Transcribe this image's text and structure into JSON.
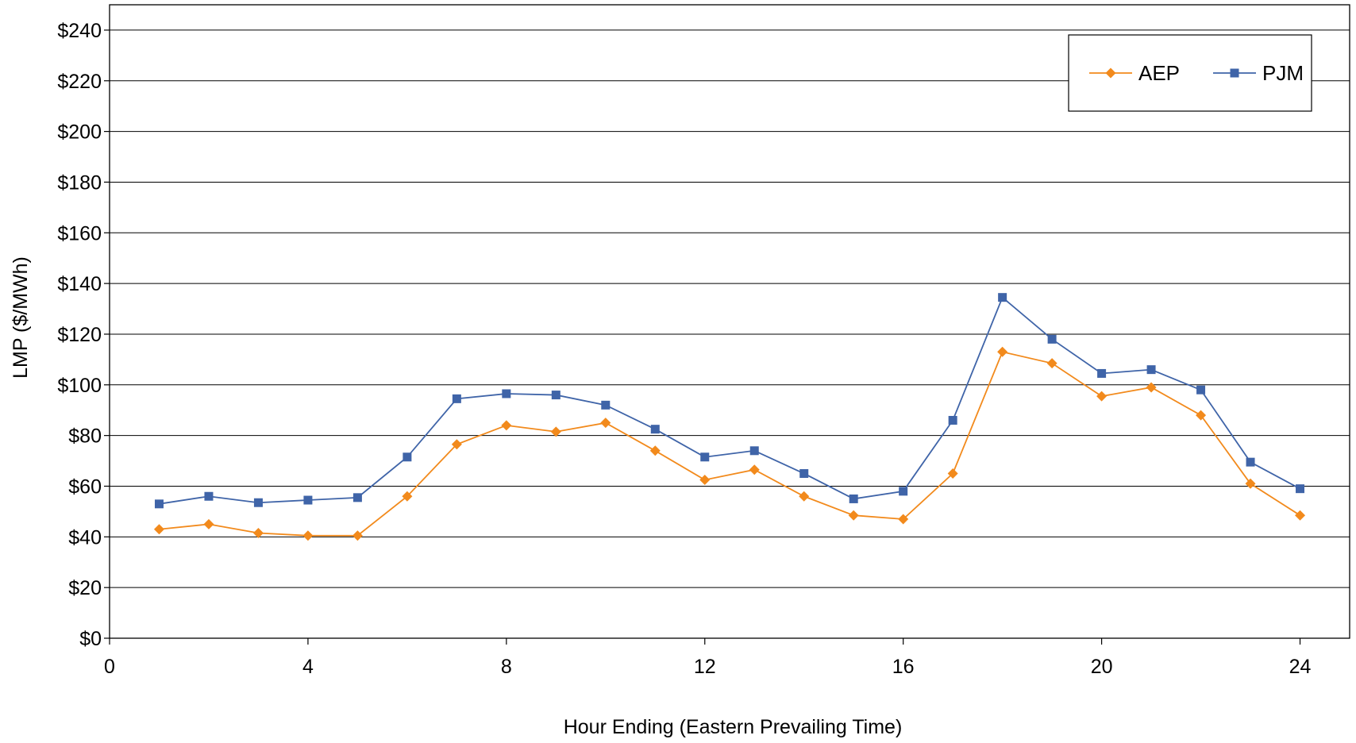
{
  "chart_data": {
    "type": "line",
    "title": "",
    "xlabel": "Hour Ending (Eastern Prevailing Time)",
    "ylabel": "LMP ($/MWh)",
    "xlim": [
      0,
      25
    ],
    "ylim": [
      0,
      250
    ],
    "xticks": [
      0,
      4,
      8,
      12,
      16,
      20,
      24
    ],
    "xtick_labels": [
      "0",
      "4",
      "8",
      "12",
      "16",
      "20",
      "24"
    ],
    "yticks": [
      0,
      20,
      40,
      60,
      80,
      100,
      120,
      140,
      160,
      180,
      200,
      220,
      240
    ],
    "ytick_labels": [
      "$0",
      "$20",
      "$40",
      "$60",
      "$80",
      "$100",
      "$120",
      "$140",
      "$160",
      "$180",
      "$200",
      "$220",
      "$240"
    ],
    "grid": "horizontal",
    "legend_position": "top-right",
    "x": [
      1,
      2,
      3,
      4,
      5,
      6,
      7,
      8,
      9,
      10,
      11,
      12,
      13,
      14,
      15,
      16,
      17,
      18,
      19,
      20,
      21,
      22,
      23,
      24
    ],
    "series": [
      {
        "name": "AEP",
        "color": "#F28A1C",
        "marker": "diamond",
        "values": [
          43,
          45,
          41.5,
          40.5,
          40.5,
          56,
          76.5,
          84,
          81.5,
          85,
          74,
          62.5,
          66.5,
          56,
          48.5,
          47,
          65,
          113,
          108.5,
          95.5,
          99,
          88,
          61,
          48.5
        ]
      },
      {
        "name": "PJM",
        "color": "#3F64A8",
        "marker": "square",
        "values": [
          53,
          56,
          53.5,
          54.5,
          55.5,
          71.5,
          94.5,
          96.5,
          96,
          92,
          82.5,
          71.5,
          74,
          65,
          55,
          58,
          86,
          134.5,
          118,
          104.5,
          106,
          98,
          69.5,
          59
        ]
      }
    ]
  }
}
